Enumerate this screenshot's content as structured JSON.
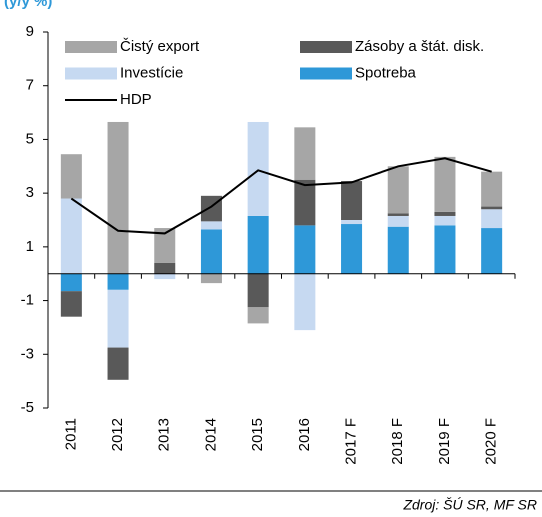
{
  "chart_data": {
    "type": "bar",
    "stacked": true,
    "subtitle": "(y/y %)",
    "source": "Zdroj: ŠÚ SR, MF SR",
    "categories": [
      "2011",
      "2012",
      "2013",
      "2014",
      "2015",
      "2016",
      "2017 F",
      "2018 F",
      "2019 F",
      "2020 F"
    ],
    "series": [
      {
        "name": "Čistý export",
        "color": "#a6a6a6",
        "values": [
          1.65,
          5.65,
          1.3,
          -0.35,
          -0.6,
          1.95,
          0,
          1.75,
          2.05,
          1.3
        ]
      },
      {
        "name": "Zásoby a štát. disk.",
        "color": "#595959",
        "values": [
          -0.95,
          -1.2,
          0.4,
          0.95,
          -1.25,
          1.7,
          1.45,
          0.1,
          0.15,
          0.1
        ]
      },
      {
        "name": "Investície",
        "color": "#c6d9f1",
        "values": [
          2.8,
          -2.15,
          -0.2,
          0.3,
          3.5,
          -2.1,
          0.15,
          0.4,
          0.35,
          0.7
        ]
      },
      {
        "name": "Spotreba",
        "color": "#2e98d8",
        "values": [
          -0.65,
          -0.6,
          0,
          1.65,
          2.15,
          1.8,
          1.85,
          1.75,
          1.8,
          1.7
        ]
      },
      {
        "name": "HDP",
        "type": "line",
        "color": "#000000",
        "values": [
          2.8,
          1.6,
          1.5,
          2.5,
          3.85,
          3.3,
          3.4,
          4.0,
          4.3,
          3.8
        ]
      }
    ],
    "ylim": [
      -5,
      9
    ],
    "yticks": [
      -5,
      -3,
      -1,
      1,
      3,
      5,
      7,
      9
    ],
    "grid": false
  }
}
